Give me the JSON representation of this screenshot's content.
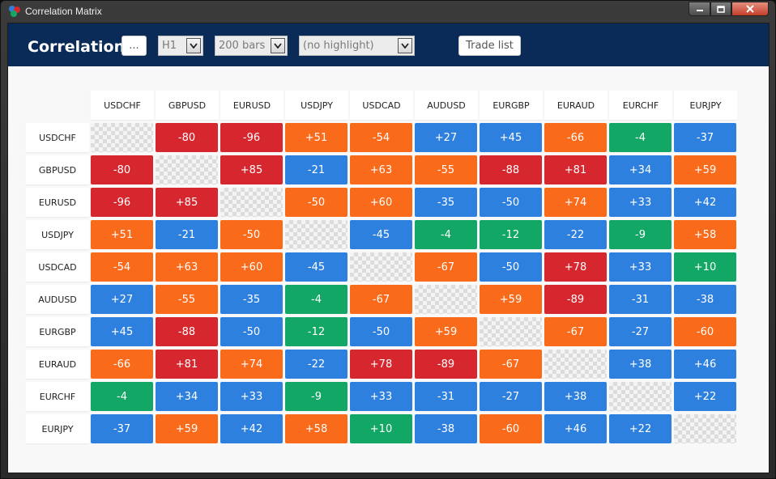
{
  "window": {
    "title": "Correlation Matrix"
  },
  "toolbar": {
    "title": "Correlation",
    "more_button": "...",
    "timeframe": "H1",
    "bars": "200 bars",
    "highlight": "(no highlight)",
    "trade_list_button": "Trade list"
  },
  "colors": {
    "red": "#d6262e",
    "orange": "#f96a1a",
    "blue": "#2e80de",
    "green": "#13a765",
    "header_bg": "#0a2a58"
  },
  "matrix": {
    "symbols": [
      "USDCHF",
      "GBPUSD",
      "EURUSD",
      "USDJPY",
      "USDCAD",
      "AUDUSD",
      "EURGBP",
      "EURAUD",
      "EURCHF",
      "EURJPY"
    ],
    "rows": [
      {
        "symbol": "USDCHF",
        "values": [
          "",
          "-80",
          "-96",
          "+51",
          "-54",
          "+27",
          "+45",
          "-66",
          "-4",
          "-37"
        ],
        "colors": [
          "",
          "red",
          "red",
          "orange",
          "orange",
          "blue",
          "blue",
          "orange",
          "green",
          "blue"
        ]
      },
      {
        "symbol": "GBPUSD",
        "values": [
          "-80",
          "",
          "+85",
          "-21",
          "+63",
          "-55",
          "-88",
          "+81",
          "+34",
          "+59"
        ],
        "colors": [
          "red",
          "",
          "red",
          "blue",
          "orange",
          "orange",
          "red",
          "red",
          "blue",
          "orange"
        ]
      },
      {
        "symbol": "EURUSD",
        "values": [
          "-96",
          "+85",
          "",
          "-50",
          "+60",
          "-35",
          "-50",
          "+74",
          "+33",
          "+42"
        ],
        "colors": [
          "red",
          "red",
          "",
          "orange",
          "orange",
          "blue",
          "blue",
          "orange",
          "blue",
          "blue"
        ]
      },
      {
        "symbol": "USDJPY",
        "values": [
          "+51",
          "-21",
          "-50",
          "",
          "-45",
          "-4",
          "-12",
          "-22",
          "-9",
          "+58"
        ],
        "colors": [
          "orange",
          "blue",
          "orange",
          "",
          "blue",
          "green",
          "green",
          "blue",
          "green",
          "orange"
        ]
      },
      {
        "symbol": "USDCAD",
        "values": [
          "-54",
          "+63",
          "+60",
          "-45",
          "",
          "-67",
          "-50",
          "+78",
          "+33",
          "+10"
        ],
        "colors": [
          "orange",
          "orange",
          "orange",
          "blue",
          "",
          "orange",
          "blue",
          "red",
          "blue",
          "green"
        ]
      },
      {
        "symbol": "AUDUSD",
        "values": [
          "+27",
          "-55",
          "-35",
          "-4",
          "-67",
          "",
          "+59",
          "-89",
          "-31",
          "-38"
        ],
        "colors": [
          "blue",
          "orange",
          "blue",
          "green",
          "orange",
          "",
          "orange",
          "red",
          "blue",
          "blue"
        ]
      },
      {
        "symbol": "EURGBP",
        "values": [
          "+45",
          "-88",
          "-50",
          "-12",
          "-50",
          "+59",
          "",
          "-67",
          "-27",
          "-60"
        ],
        "colors": [
          "blue",
          "red",
          "blue",
          "green",
          "blue",
          "orange",
          "",
          "orange",
          "blue",
          "orange"
        ]
      },
      {
        "symbol": "EURAUD",
        "values": [
          "-66",
          "+81",
          "+74",
          "-22",
          "+78",
          "-89",
          "-67",
          "",
          "+38",
          "+46"
        ],
        "colors": [
          "orange",
          "red",
          "orange",
          "blue",
          "red",
          "red",
          "orange",
          "",
          "blue",
          "blue"
        ]
      },
      {
        "symbol": "EURCHF",
        "values": [
          "-4",
          "+34",
          "+33",
          "-9",
          "+33",
          "-31",
          "-27",
          "+38",
          "",
          "+22"
        ],
        "colors": [
          "green",
          "blue",
          "blue",
          "green",
          "blue",
          "blue",
          "blue",
          "blue",
          "",
          "blue"
        ]
      },
      {
        "symbol": "EURJPY",
        "values": [
          "-37",
          "+59",
          "+42",
          "+58",
          "+10",
          "-38",
          "-60",
          "+46",
          "+22",
          ""
        ],
        "colors": [
          "blue",
          "orange",
          "blue",
          "orange",
          "green",
          "blue",
          "orange",
          "blue",
          "blue",
          ""
        ]
      }
    ]
  }
}
